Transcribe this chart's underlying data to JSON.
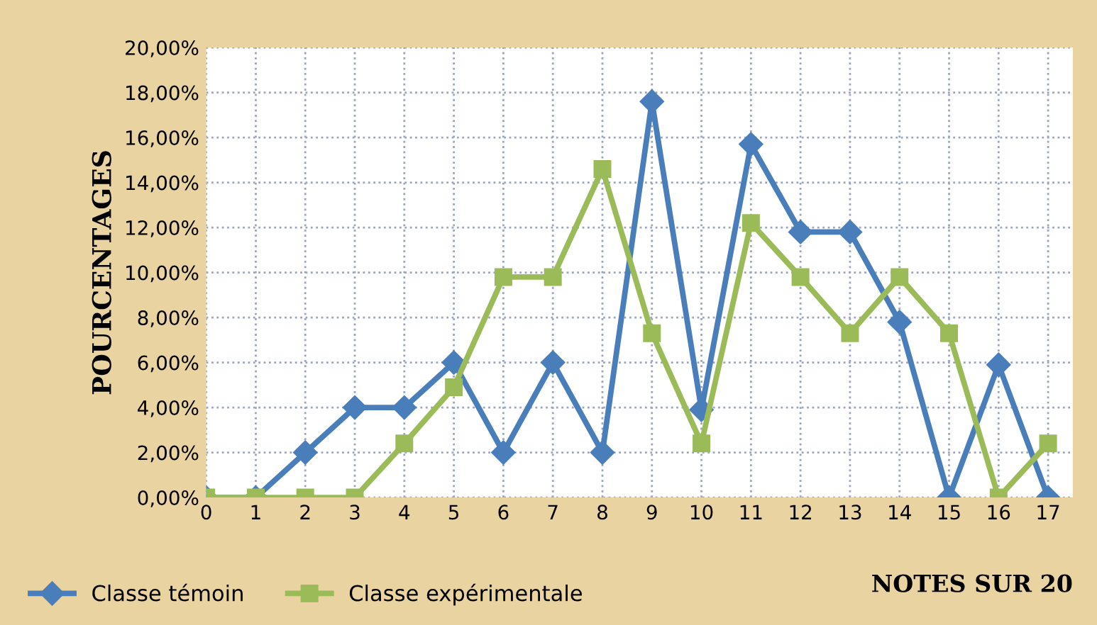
{
  "chart_data": {
    "type": "line",
    "xlabel": "NOTES SUR 20",
    "ylabel": "POURCENTAGES",
    "categories": [
      "0",
      "1",
      "2",
      "3",
      "4",
      "5",
      "6",
      "7",
      "8",
      "9",
      "10",
      "11",
      "12",
      "13",
      "14",
      "15",
      "16",
      "17"
    ],
    "series": [
      {
        "name": "Classe témoin",
        "color": "#4a7ebb",
        "marker": "diamond",
        "values": [
          0,
          0,
          2,
          4,
          4,
          6,
          2,
          6,
          2,
          17.6,
          3.9,
          15.7,
          11.8,
          11.8,
          7.8,
          0,
          5.9,
          0
        ]
      },
      {
        "name": "Classe expérimentale",
        "color": "#9bbb59",
        "marker": "square",
        "values": [
          0,
          0,
          0,
          0,
          2.4,
          4.9,
          9.8,
          9.8,
          14.6,
          7.3,
          2.4,
          12.2,
          9.8,
          7.3,
          9.8,
          7.3,
          0,
          2.4
        ]
      }
    ],
    "ylim": [
      0,
      20
    ],
    "yticks": [
      {
        "value": 0,
        "label": "0,00%"
      },
      {
        "value": 2,
        "label": "2,00%"
      },
      {
        "value": 4,
        "label": "4,00%"
      },
      {
        "value": 6,
        "label": "6,00%"
      },
      {
        "value": 8,
        "label": "8,00%"
      },
      {
        "value": 10,
        "label": "10,00%"
      },
      {
        "value": 12,
        "label": "12,00%"
      },
      {
        "value": 14,
        "label": "14,00%"
      },
      {
        "value": 16,
        "label": "16,00%"
      },
      {
        "value": 18,
        "label": "18,00%"
      },
      {
        "value": 20,
        "label": "20,00%"
      }
    ],
    "grid": true,
    "legend": "bottom left",
    "line_style": "solid"
  }
}
